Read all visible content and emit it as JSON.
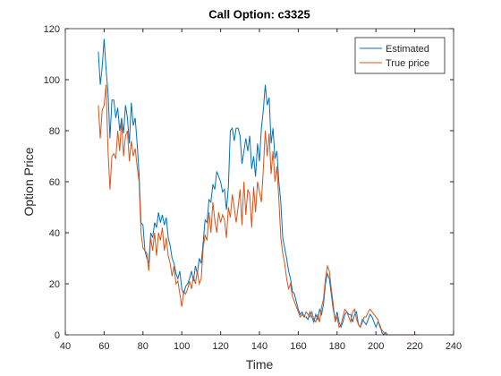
{
  "chart_data": {
    "type": "line",
    "title": "Call Option: c3325",
    "xlabel": "Time",
    "ylabel": "Option Price",
    "x": [
      57,
      58,
      59,
      60,
      61,
      62,
      63,
      64,
      65,
      66,
      67,
      68,
      69,
      70,
      71,
      72,
      73,
      74,
      75,
      76,
      77,
      78,
      79,
      80,
      81,
      82,
      83,
      84,
      85,
      86,
      87,
      88,
      89,
      90,
      91,
      92,
      93,
      94,
      95,
      96,
      97,
      98,
      99,
      100,
      101,
      102,
      103,
      104,
      105,
      106,
      107,
      108,
      109,
      110,
      111,
      112,
      113,
      114,
      115,
      116,
      117,
      118,
      119,
      120,
      121,
      122,
      123,
      124,
      125,
      126,
      127,
      128,
      129,
      130,
      131,
      132,
      133,
      134,
      135,
      136,
      137,
      138,
      139,
      140,
      141,
      142,
      143,
      144,
      145,
      146,
      147,
      148,
      149,
      150,
      151,
      152,
      153,
      154,
      155,
      156,
      157,
      158,
      159,
      160,
      161,
      162,
      163,
      164,
      165,
      166,
      167,
      168,
      169,
      170,
      171,
      172,
      173,
      174,
      175,
      176,
      177,
      178,
      179,
      180,
      181,
      182,
      183,
      184,
      185,
      186,
      187,
      188,
      189,
      190,
      191,
      192,
      193,
      194,
      195,
      196,
      197,
      198,
      199,
      200,
      201,
      202,
      203,
      204,
      205,
      206,
      207,
      208,
      209,
      210,
      211,
      212,
      213,
      214,
      215,
      216,
      217,
      218,
      219,
      220,
      221,
      222
    ],
    "series": [
      {
        "name": "Estimated",
        "color": "#0072BD",
        "values": [
          111,
          98,
          105,
          116,
          104,
          95,
          77,
          92,
          92,
          85,
          89,
          80,
          85,
          79,
          90,
          85,
          75,
          91,
          82,
          85,
          75,
          63,
          44,
          43,
          33,
          30,
          28,
          40,
          38,
          44,
          42,
          48,
          44,
          47,
          43,
          46,
          38,
          35,
          30,
          28,
          24,
          22,
          25,
          18,
          16,
          19,
          20,
          22,
          25,
          21,
          27,
          24,
          30,
          28,
          36,
          45,
          44,
          53,
          52,
          59,
          57,
          64,
          62,
          60,
          56,
          57,
          49,
          58,
          80,
          81,
          76,
          81,
          81,
          78,
          67,
          72,
          77,
          72,
          78,
          65,
          70,
          62,
          75,
          68,
          81,
          88,
          98,
          90,
          93,
          75,
          81,
          69,
          72,
          60,
          52,
          38,
          34,
          30,
          25,
          22,
          17,
          16,
          13,
          10,
          8,
          9,
          7,
          7,
          6,
          9,
          7,
          5,
          8,
          6,
          10,
          8,
          12,
          20,
          24,
          22,
          16,
          10,
          6,
          9,
          5,
          3,
          5,
          8,
          9,
          8,
          8,
          5,
          8,
          9,
          4,
          3,
          6,
          5,
          4,
          6,
          8,
          7,
          5,
          3,
          5,
          4,
          1,
          0,
          1,
          0,
          0,
          0,
          0,
          0,
          0,
          0,
          0,
          0,
          0,
          0,
          0,
          0,
          0,
          0,
          0,
          0
        ]
      },
      {
        "name": "True price",
        "color": "#D95319",
        "values": [
          90,
          77,
          88,
          90,
          98,
          72,
          57,
          70,
          71,
          69,
          80,
          72,
          84,
          70,
          78,
          80,
          68,
          76,
          70,
          73,
          66,
          60,
          40,
          34,
          33,
          32,
          25,
          38,
          33,
          40,
          31,
          40,
          37,
          42,
          33,
          38,
          31,
          28,
          23,
          27,
          20,
          21,
          16,
          11,
          17,
          16,
          18,
          21,
          18,
          23,
          20,
          25,
          20,
          22,
          34,
          39,
          37,
          48,
          40,
          52,
          45,
          40,
          48,
          44,
          47,
          45,
          38,
          50,
          46,
          55,
          50,
          44,
          50,
          57,
          43,
          60,
          47,
          57,
          55,
          42,
          58,
          48,
          60,
          56,
          52,
          65,
          80,
          70,
          79,
          63,
          72,
          60,
          66,
          53,
          38,
          32,
          28,
          22,
          18,
          20,
          15,
          13,
          11,
          9,
          7,
          8,
          7,
          9,
          8,
          7,
          9,
          6,
          5,
          8,
          5,
          11,
          14,
          22,
          27,
          25,
          18,
          12,
          5,
          7,
          3,
          4,
          7,
          10,
          9,
          7,
          5,
          9,
          10,
          6,
          4,
          3,
          5,
          7,
          7,
          9,
          10,
          9,
          8,
          7,
          6,
          3,
          2,
          1,
          0,
          0,
          0,
          0,
          0,
          0,
          0,
          0,
          0,
          0,
          0,
          0,
          0,
          0,
          0,
          0,
          0,
          0
        ]
      }
    ],
    "xlim": [
      40,
      240
    ],
    "xticks": [
      40,
      60,
      80,
      100,
      120,
      140,
      160,
      180,
      200,
      220,
      240
    ],
    "ylim": [
      0,
      120
    ],
    "yticks": [
      0,
      20,
      40,
      60,
      80,
      100,
      120
    ],
    "legend": "northeast",
    "grid": false
  }
}
